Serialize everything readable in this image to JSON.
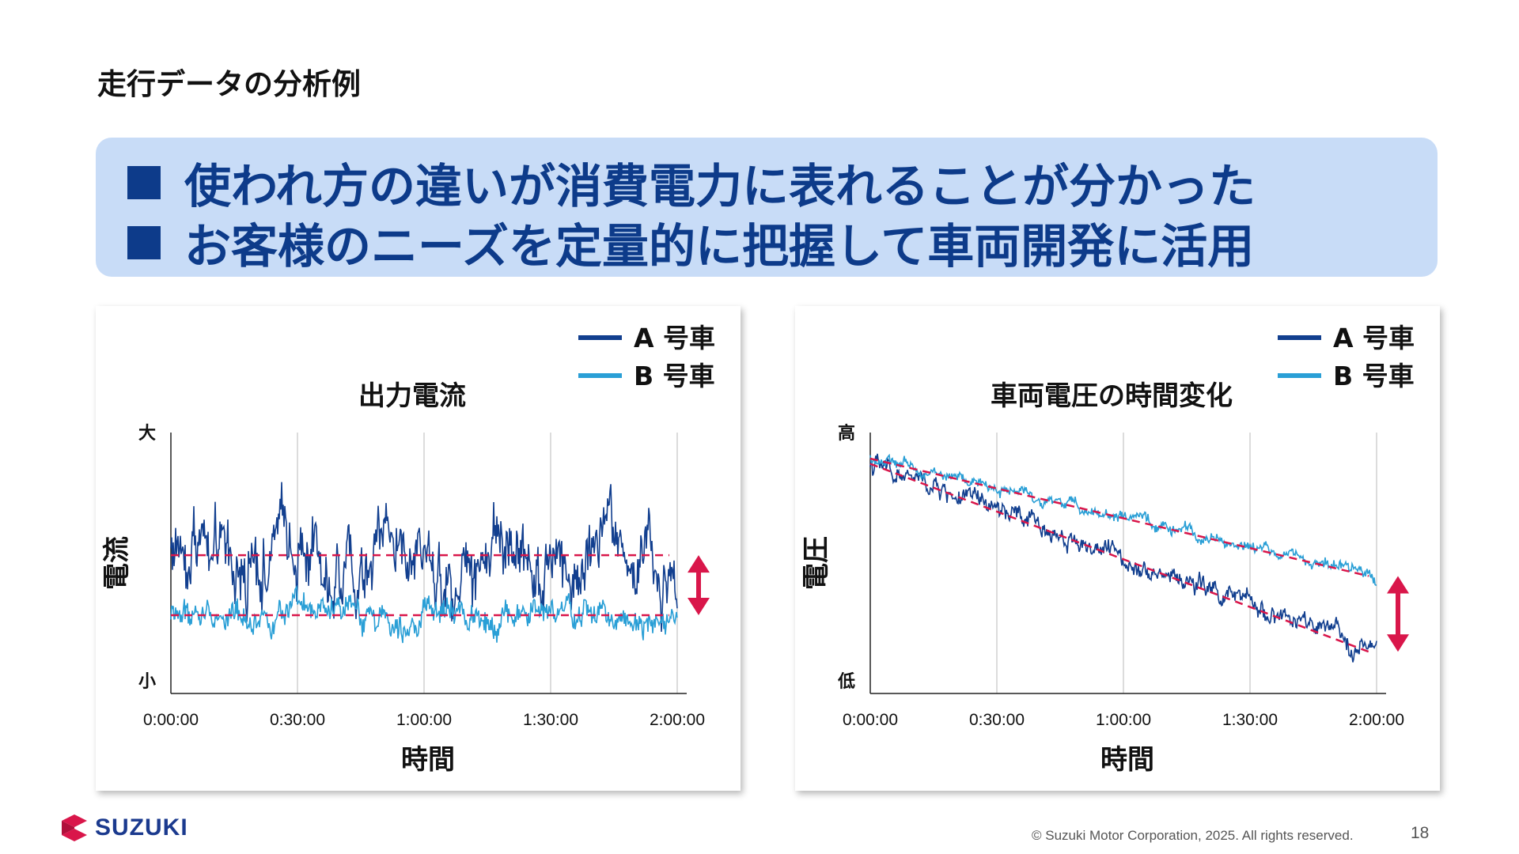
{
  "slide": {
    "title": "走行データの分析例",
    "page_number": "18",
    "copyright": "© Suzuki Motor Corporation, 2025. All rights reserved.",
    "logo_text": "SUZUKI",
    "colors": {
      "accent": "#0d3b8a",
      "banner_bg": "#c8dcf7",
      "car_a": "#123f8f",
      "car_b": "#2a9fd6",
      "highlight": "#d9164a"
    }
  },
  "banner": {
    "bullet_icon": "square-bullet",
    "lines": [
      "使われ方の違いが消費電力に表れることが分かった",
      "お客様のニーズを定量的に把握して車両開発に活用"
    ]
  },
  "chart_data": [
    {
      "type": "line",
      "title": "出力電流",
      "xlabel": "時間",
      "ylabel": "電流",
      "y_high_label": "大",
      "y_low_label": "小",
      "y_scale": "qualitative (0 = 小, 1 = 大)",
      "x_ticks": [
        "0:00:00",
        "0:30:00",
        "1:00:00",
        "1:30:00",
        "2:00:00"
      ],
      "xlim": [
        "0:00:00",
        "2:00:00"
      ],
      "ylim": [
        0,
        1
      ],
      "grid": "vertical",
      "legend_position": "top-right",
      "series": [
        {
          "name": "A 号車",
          "color": "#123f8f",
          "mean": 0.53,
          "amplitude": 0.12,
          "trend": [
            0.53,
            0.53
          ]
        },
        {
          "name": "B 号車",
          "color": "#2a9fd6",
          "mean": 0.3,
          "amplitude": 0.05,
          "trend": [
            0.3,
            0.3
          ]
        }
      ],
      "reference_lines": [
        0.53,
        0.3
      ],
      "annotation": "double-arrow"
    },
    {
      "type": "line",
      "title": "車両電圧の時間変化",
      "xlabel": "時間",
      "ylabel": "電圧",
      "y_high_label": "高",
      "y_low_label": "低",
      "y_scale": "qualitative (0 = 低, 1 = 高)",
      "x_ticks": [
        "0:00:00",
        "0:30:00",
        "1:00:00",
        "1:30:00",
        "2:00:00"
      ],
      "xlim": [
        "0:00:00",
        "2:00:00"
      ],
      "ylim": [
        0,
        1
      ],
      "grid": "vertical",
      "legend_position": "top-right",
      "series": [
        {
          "name": "A 号車",
          "color": "#123f8f",
          "trend": [
            0.88,
            0.16
          ],
          "amplitude": 0.035
        },
        {
          "name": "B 号車",
          "color": "#2a9fd6",
          "trend": [
            0.9,
            0.45
          ],
          "amplitude": 0.02
        }
      ],
      "reference_lines": [
        [
          0.88,
          0.16
        ],
        [
          0.9,
          0.45
        ]
      ],
      "annotation": "double-arrow"
    }
  ]
}
